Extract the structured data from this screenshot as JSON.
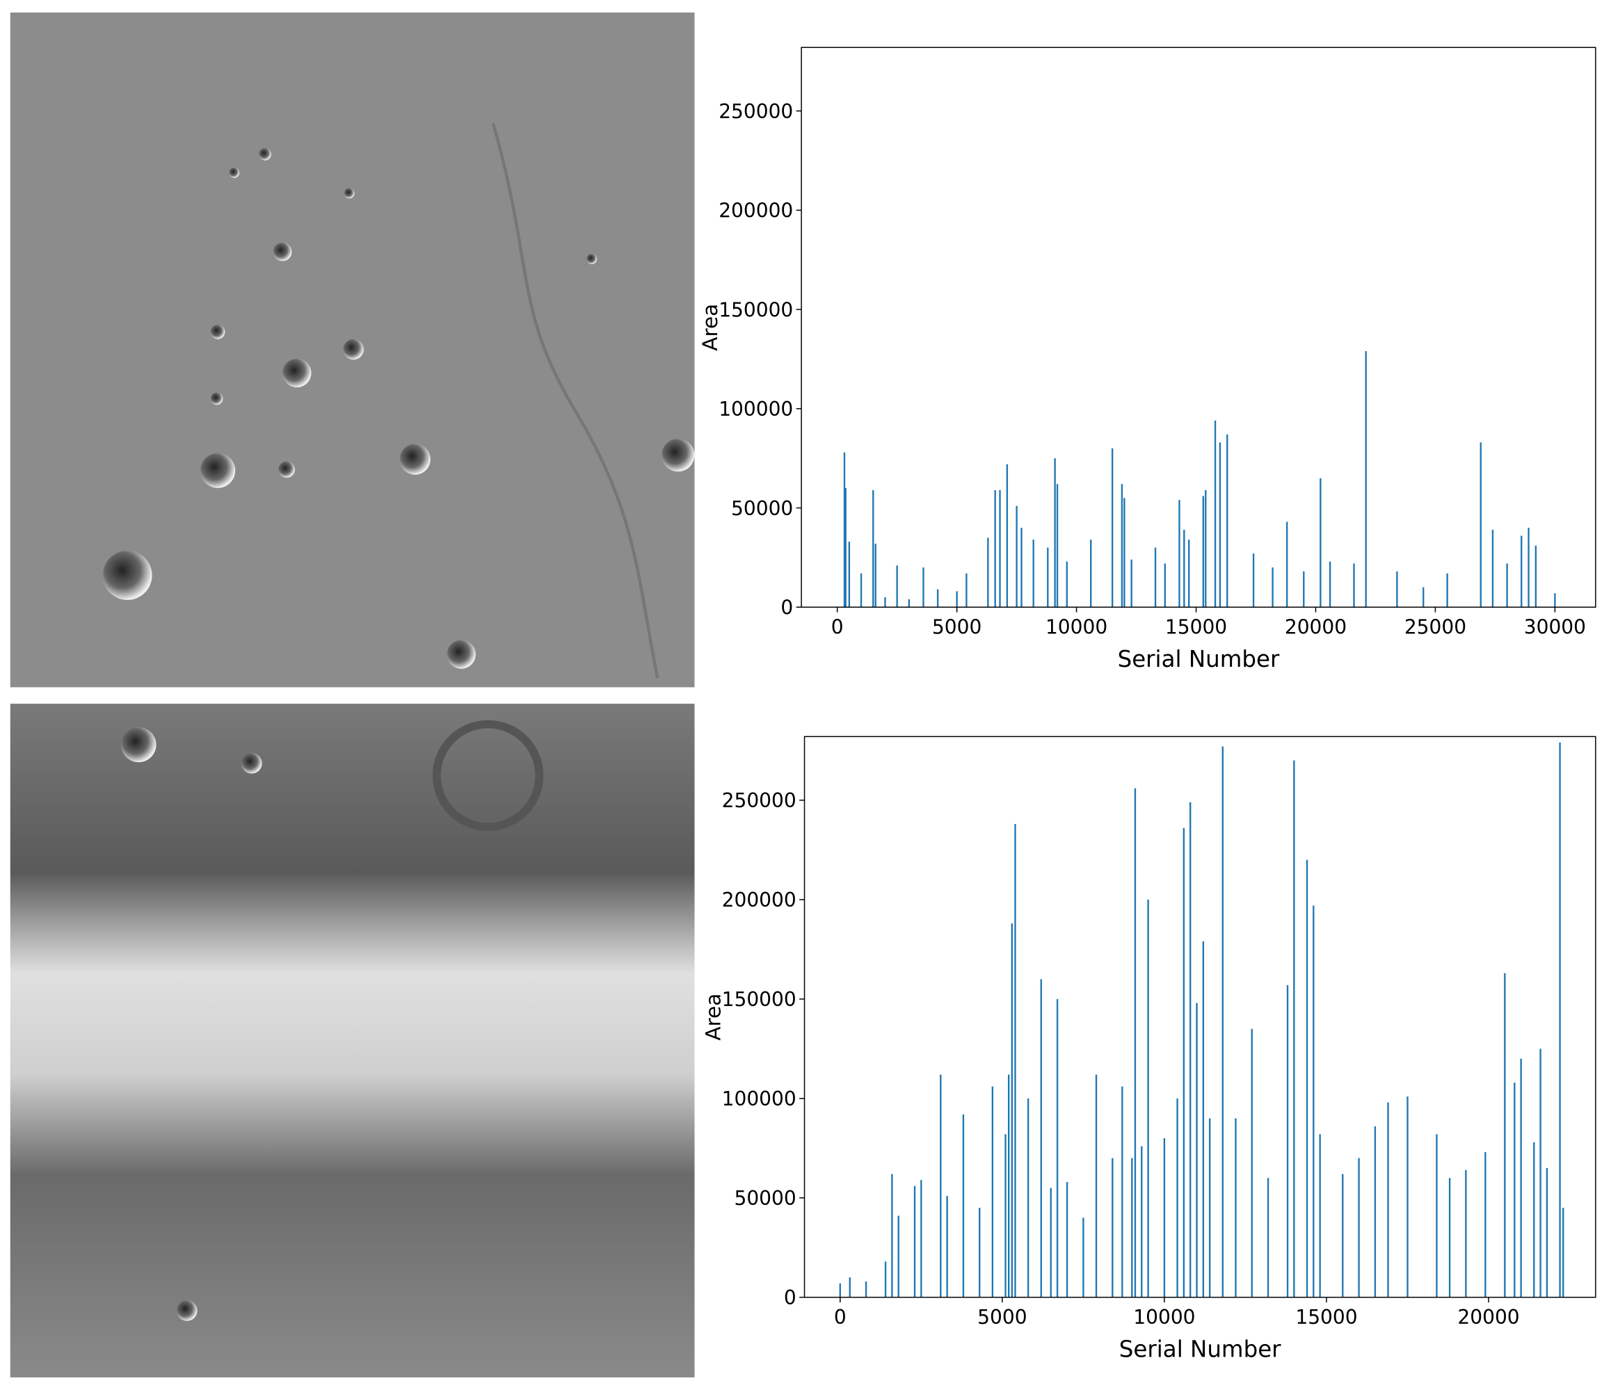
{
  "chart_data": [
    {
      "type": "bar",
      "x_label": "Serial Number",
      "y_label": "Area",
      "color": "#1f77b4",
      "xlim": [
        -1500,
        31700
      ],
      "ylim": [
        0,
        282000
      ],
      "xticks": [
        0,
        5000,
        10000,
        15000,
        20000,
        25000,
        30000
      ],
      "yticks": [
        0,
        50000,
        100000,
        150000,
        200000,
        250000
      ],
      "x": [
        300,
        350,
        500,
        1000,
        1500,
        1600,
        2000,
        2500,
        3000,
        3600,
        4200,
        5000,
        5400,
        6300,
        6600,
        6800,
        7100,
        7500,
        7700,
        8200,
        8800,
        9100,
        9200,
        9600,
        10600,
        11500,
        11900,
        12000,
        12300,
        13300,
        13700,
        14300,
        14500,
        14700,
        15300,
        15400,
        15800,
        16000,
        16300,
        17400,
        18200,
        18800,
        19500,
        20200,
        20600,
        21600,
        22100,
        23400,
        24500,
        25500,
        26900,
        27400,
        28000,
        28600,
        28900,
        29200,
        30000
      ],
      "values": [
        78000,
        60000,
        33000,
        17000,
        59000,
        32000,
        5000,
        21000,
        4000,
        20000,
        9000,
        8000,
        17000,
        35000,
        59000,
        59000,
        72000,
        51000,
        40000,
        34000,
        30000,
        75000,
        62000,
        23000,
        34000,
        80000,
        62000,
        55000,
        24000,
        30000,
        22000,
        54000,
        39000,
        34000,
        56000,
        59000,
        94000,
        83000,
        87000,
        27000,
        20000,
        43000,
        18000,
        65000,
        23000,
        22000,
        129000,
        18000,
        10000,
        17000,
        83000,
        39000,
        22000,
        36000,
        40000,
        31000,
        7000
      ]
    },
    {
      "type": "bar",
      "x_label": "Serial Number",
      "y_label": "Area",
      "color": "#1f77b4",
      "xlim": [
        -1100,
        23300
      ],
      "ylim": [
        0,
        282000
      ],
      "xticks": [
        0,
        5000,
        10000,
        15000,
        20000
      ],
      "yticks": [
        0,
        50000,
        100000,
        150000,
        200000,
        250000
      ],
      "x": [
        0,
        300,
        800,
        1400,
        1600,
        1800,
        2300,
        2500,
        3100,
        3300,
        3800,
        4300,
        4700,
        5100,
        5200,
        5300,
        5400,
        5800,
        6200,
        6500,
        6700,
        7000,
        7500,
        7900,
        8400,
        8700,
        9000,
        9100,
        9300,
        9500,
        10000,
        10400,
        10600,
        10800,
        11000,
        11200,
        11400,
        11800,
        12200,
        12700,
        13200,
        13800,
        14000,
        14400,
        14600,
        14800,
        15500,
        16000,
        16500,
        16900,
        17500,
        18400,
        18800,
        19300,
        19900,
        20500,
        20800,
        21000,
        21400,
        21600,
        21800,
        22200,
        22300
      ],
      "values": [
        7000,
        10000,
        8000,
        18000,
        62000,
        41000,
        56000,
        59000,
        112000,
        51000,
        92000,
        45000,
        106000,
        82000,
        112000,
        188000,
        238000,
        100000,
        160000,
        55000,
        150000,
        58000,
        40000,
        112000,
        70000,
        106000,
        70000,
        256000,
        76000,
        200000,
        80000,
        100000,
        236000,
        249000,
        148000,
        179000,
        90000,
        277000,
        90000,
        135000,
        60000,
        157000,
        270000,
        220000,
        197000,
        82000,
        62000,
        70000,
        86000,
        98000,
        101000,
        82000,
        60000,
        64000,
        73000,
        163000,
        108000,
        120000,
        78000,
        125000,
        65000,
        279000,
        45000
      ]
    }
  ]
}
